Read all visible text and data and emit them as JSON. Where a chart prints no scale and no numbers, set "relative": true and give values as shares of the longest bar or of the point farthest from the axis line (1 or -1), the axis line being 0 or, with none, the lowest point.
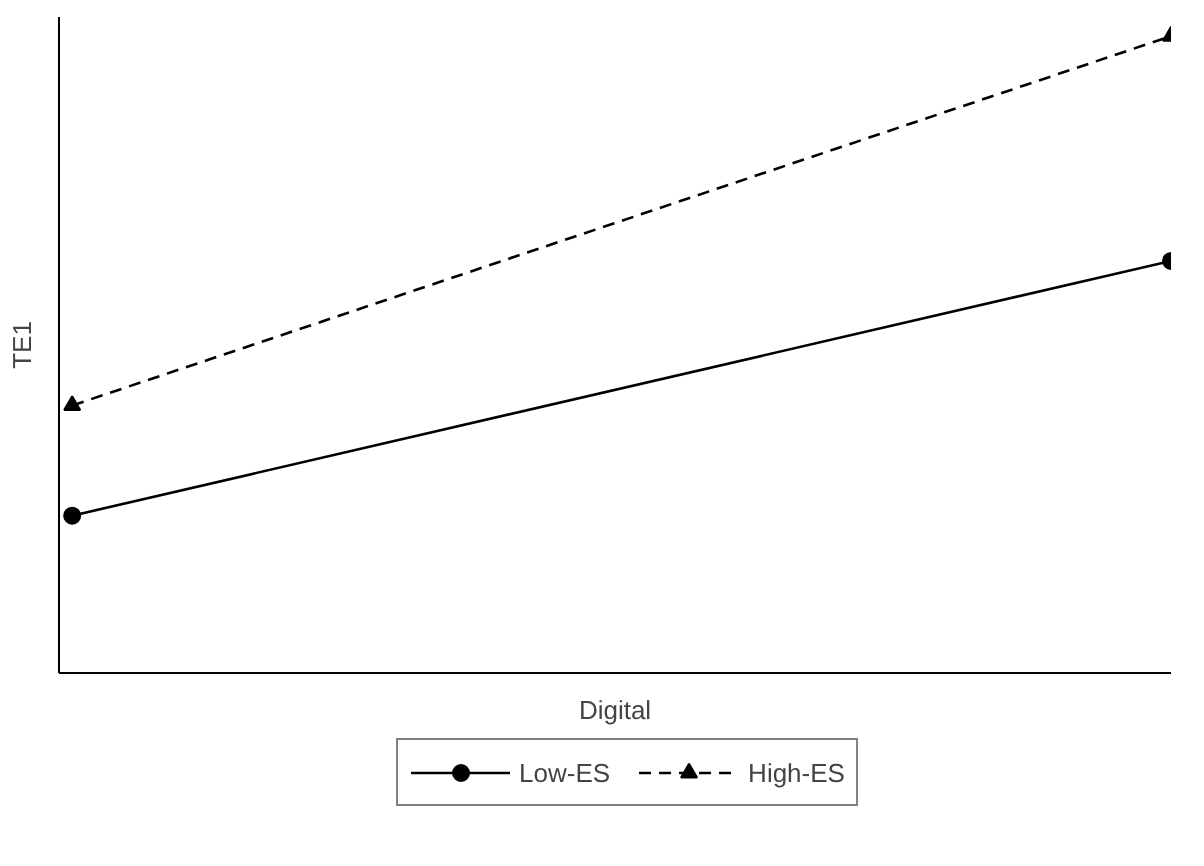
{
  "chart_data": {
    "type": "line",
    "relative": true,
    "xlabel": "Digital",
    "ylabel": "TE1",
    "categories": [
      null,
      null
    ],
    "series": [
      {
        "name": "Low-ES",
        "color": "#000000",
        "values": [
          0.247,
          0.647
        ],
        "marker": "circle",
        "line_style": "solid"
      },
      {
        "name": "High-ES",
        "color": "#000000",
        "values": [
          0.42,
          1
        ],
        "marker": "triangle",
        "line_style": "dashed"
      }
    ],
    "legend": "bottom",
    "grid": false
  }
}
